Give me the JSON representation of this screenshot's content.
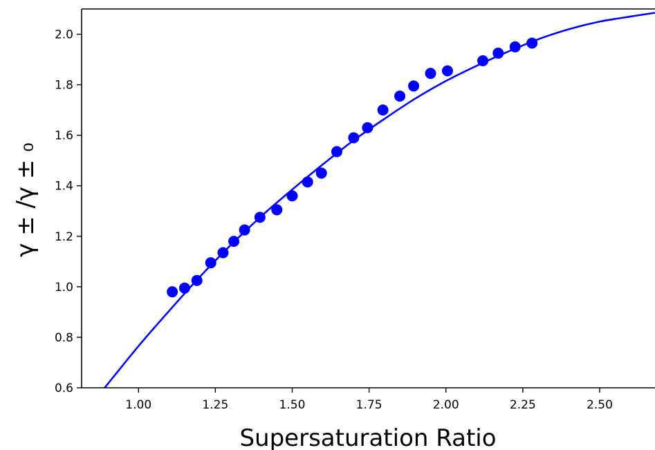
{
  "chart_data": {
    "type": "scatter",
    "title": "",
    "xlabel": "Supersaturation Ratio",
    "ylabel": "γ ± /γ ± ₀",
    "xlim": [
      0.815,
      2.68
    ],
    "ylim": [
      0.6,
      2.1
    ],
    "xticks": [
      1.0,
      1.25,
      1.5,
      1.75,
      2.0,
      2.25,
      2.5
    ],
    "xtick_labels": [
      "1.00",
      "1.25",
      "1.50",
      "1.75",
      "2.00",
      "2.25",
      "2.50"
    ],
    "yticks": [
      0.6,
      0.8,
      1.0,
      1.2,
      1.4,
      1.6,
      1.8,
      2.0
    ],
    "ytick_labels": [
      "0.6",
      "0.8",
      "1.0",
      "1.2",
      "1.4",
      "1.6",
      "1.8",
      "2.0"
    ],
    "grid": false,
    "series": [
      {
        "kind": "scatter",
        "color": "#0000ff",
        "x": [
          1.11,
          1.15,
          1.19,
          1.235,
          1.275,
          1.31,
          1.345,
          1.395,
          1.45,
          1.5,
          1.55,
          1.595,
          1.645,
          1.7,
          1.745,
          1.795,
          1.85,
          1.895,
          1.95,
          2.005,
          2.12,
          2.17,
          2.225,
          2.28
        ],
        "y": [
          0.98,
          0.995,
          1.025,
          1.095,
          1.135,
          1.18,
          1.225,
          1.275,
          1.305,
          1.36,
          1.415,
          1.45,
          1.535,
          1.59,
          1.63,
          1.7,
          1.755,
          1.795,
          1.845,
          1.855,
          1.895,
          1.925,
          1.95,
          1.965
        ]
      },
      {
        "kind": "line",
        "color": "#0000ff",
        "x": [
          0.89,
          1.0,
          1.1,
          1.2,
          1.3,
          1.4,
          1.5,
          1.6,
          1.7,
          1.8,
          1.9,
          2.0,
          2.1,
          2.2,
          2.3,
          2.4,
          2.5,
          2.6,
          2.68
        ],
        "y": [
          0.6,
          0.765,
          0.905,
          1.04,
          1.165,
          1.28,
          1.385,
          1.485,
          1.58,
          1.665,
          1.745,
          1.815,
          1.875,
          1.93,
          1.98,
          2.02,
          2.05,
          2.07,
          2.085
        ]
      }
    ]
  }
}
